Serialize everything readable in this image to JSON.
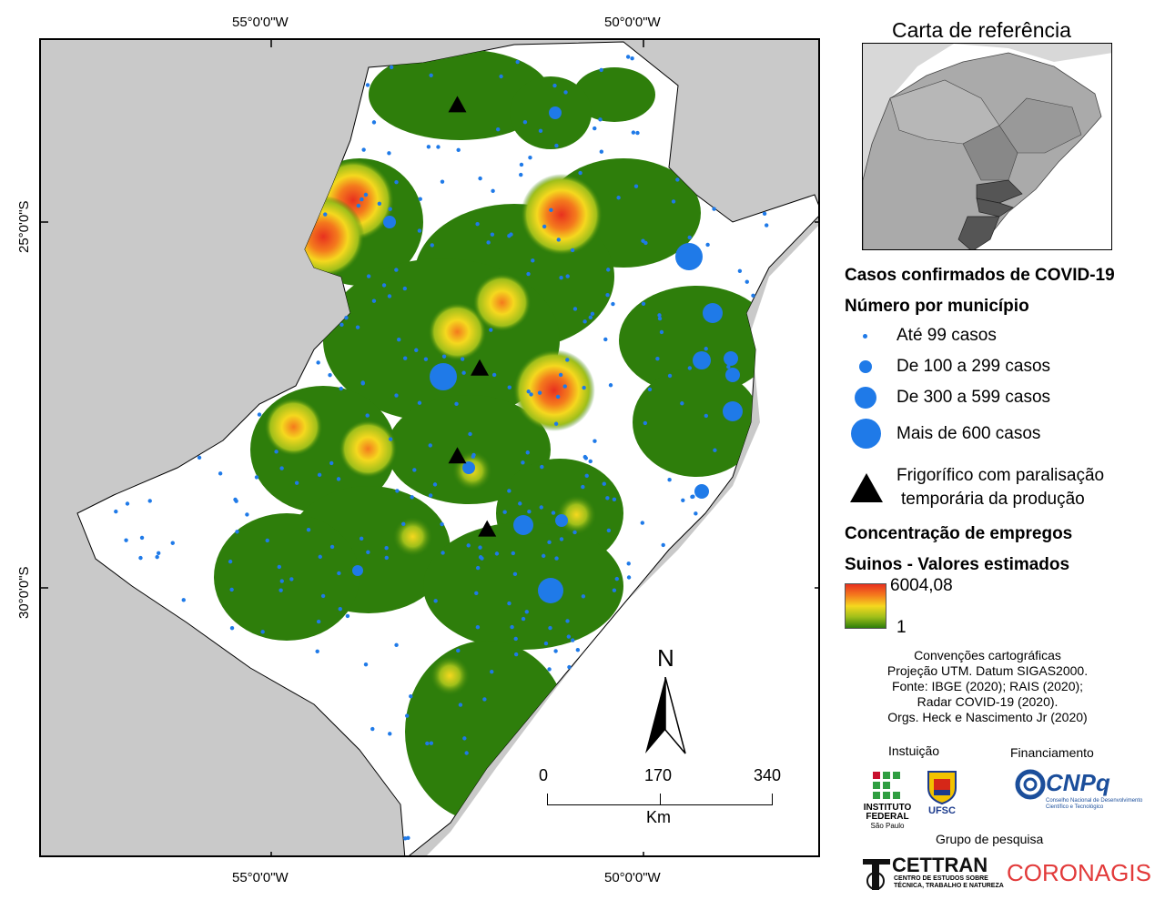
{
  "coordinates": {
    "top": [
      "55°0'0\"W",
      "50°0'0\"W"
    ],
    "bottom": [
      "55°0'0\"W",
      "50°0'0\"W"
    ],
    "left": [
      "25°0'0\"S",
      "30°0'0\"S"
    ]
  },
  "inset": {
    "title": "Carta de referência"
  },
  "legend": {
    "title1": "Casos confirmados de COVID-19",
    "title2": "Número por município",
    "cases": [
      {
        "label": "Até 99 casos"
      },
      {
        "label": "De 100 a 299 casos"
      },
      {
        "label": "De 300 a 599 casos"
      },
      {
        "label": "Mais de 600 casos"
      }
    ],
    "plant_line1": "Frigorífico com paralisação",
    "plant_line2": "temporária da produção",
    "conc_title1": "Concentração de empregos",
    "conc_title2": "Suinos - Valores estimados",
    "ramp_max": "6004,08",
    "ramp_min": "1"
  },
  "conventions": [
    "Convenções cartográficas",
    "Projeção UTM. Datum SIGAS2000.",
    "Fonte: IBGE (2020); RAIS (2020);",
    "Radar COVID-19 (2020).",
    "Orgs. Heck e Nascimento Jr (2020)"
  ],
  "north": "N",
  "scale": {
    "ticks": [
      "0",
      "170",
      "340"
    ],
    "unit": "Km"
  },
  "credits": {
    "institution_label": "Instuição",
    "funding_label": "Financiamento",
    "research_label": "Grupo de pesquisa",
    "if_line1": "INSTITUTO",
    "if_line2": "FEDERAL",
    "if_line3": "São Paulo",
    "ufsc": "UFSC",
    "cnpq": "CNPq",
    "cnpq_sub1": "Conselho Nacional de Desenvolvimento",
    "cnpq_sub2": "Científico e Tecnológico",
    "cettran": "CETTRAN",
    "cettran_sub1": "CENTRO DE ESTUDOS SOBRE",
    "cettran_sub2": "TÉCNICA, TRABALHO E NATUREZA",
    "coronagis": "CORONAGIS"
  },
  "colors": {
    "land_outside": "#c9c9c9",
    "region": "#ffffff",
    "density_low": "#2e7e0b",
    "density_high": "#e8311f",
    "point": "#1f7ae8",
    "plant": "#000000"
  },
  "hotspots": [
    {
      "lon": -53.9,
      "lat": -24.7,
      "level": "high"
    },
    {
      "lon": -54.3,
      "lat": -25.2,
      "level": "high"
    },
    {
      "lon": -51.1,
      "lat": -24.9,
      "level": "high"
    },
    {
      "lon": -51.2,
      "lat": -27.3,
      "level": "high"
    },
    {
      "lon": -52.5,
      "lat": -26.5,
      "level": "mid"
    },
    {
      "lon": -51.9,
      "lat": -26.1,
      "level": "mid"
    },
    {
      "lon": -54.7,
      "lat": -27.8,
      "level": "mid"
    },
    {
      "lon": -53.7,
      "lat": -28.1,
      "level": "mid"
    },
    {
      "lon": -53.1,
      "lat": -29.3,
      "level": "low"
    },
    {
      "lon": -52.3,
      "lat": -28.4,
      "level": "low"
    },
    {
      "lon": -50.9,
      "lat": -29.0,
      "level": "low"
    },
    {
      "lon": -52.6,
      "lat": -31.2,
      "level": "low"
    }
  ],
  "plants": [
    {
      "lon": -52.5,
      "lat": -23.4
    },
    {
      "lon": -52.2,
      "lat": -27.0
    },
    {
      "lon": -52.5,
      "lat": -28.2
    },
    {
      "lon": -52.1,
      "lat": -29.2
    }
  ]
}
